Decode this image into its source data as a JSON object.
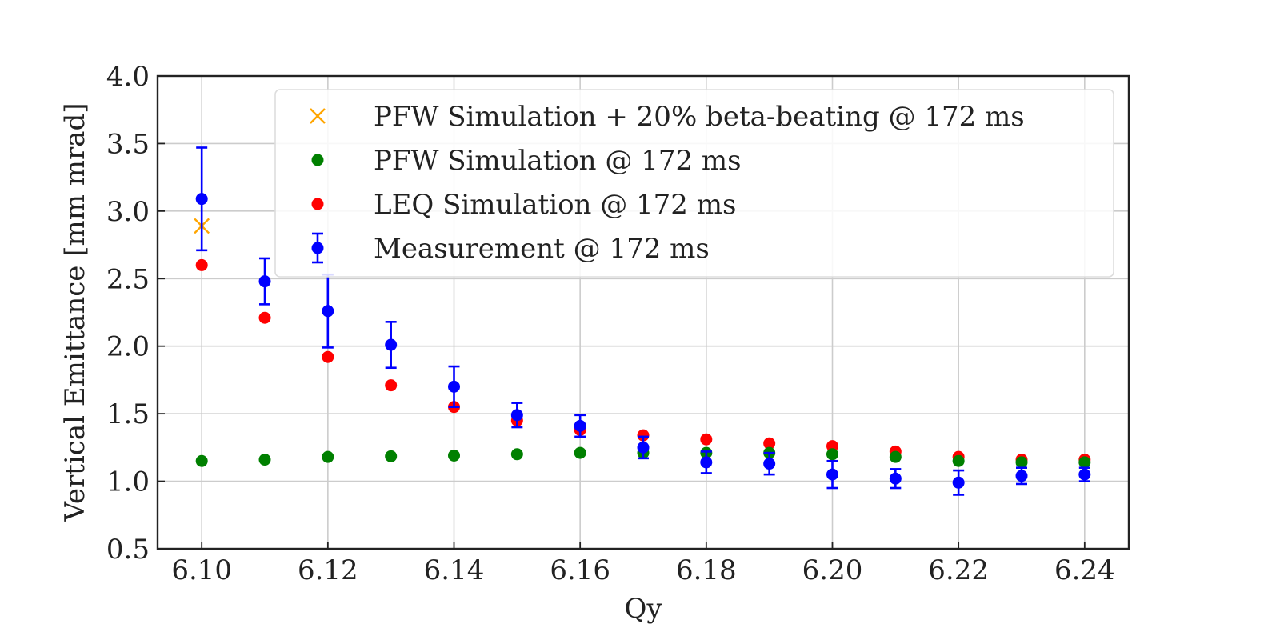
{
  "chart_data": {
    "type": "scatter",
    "title": "",
    "xlabel": "Qy",
    "ylabel": "Vertical Emittance [mm mrad]",
    "xlim": [
      6.093,
      6.247
    ],
    "ylim": [
      0.5,
      4.0
    ],
    "xticks": [
      6.1,
      6.12,
      6.14,
      6.16,
      6.18,
      6.2,
      6.22,
      6.24
    ],
    "xtick_labels": [
      "6.10",
      "6.12",
      "6.14",
      "6.16",
      "6.18",
      "6.20",
      "6.22",
      "6.24"
    ],
    "yticks": [
      0.5,
      1.0,
      1.5,
      2.0,
      2.5,
      3.0,
      3.5,
      4.0
    ],
    "ytick_labels": [
      "0.5",
      "1.0",
      "1.5",
      "2.0",
      "2.5",
      "3.0",
      "3.5",
      "4.0"
    ],
    "grid": true,
    "legend_position": "top-right",
    "series": [
      {
        "name": "PFW Simulation + 20% beta-beating @ 172 ms",
        "marker": "x",
        "color": "#ffa500",
        "x": [
          6.1
        ],
        "y": [
          2.89
        ]
      },
      {
        "name": "PFW Simulation @ 172 ms",
        "marker": "circle",
        "color": "#008000",
        "x": [
          6.1,
          6.11,
          6.12,
          6.13,
          6.14,
          6.15,
          6.16,
          6.17,
          6.18,
          6.19,
          6.2,
          6.21,
          6.22,
          6.23,
          6.24
        ],
        "y": [
          1.15,
          1.16,
          1.18,
          1.185,
          1.19,
          1.2,
          1.21,
          1.21,
          1.21,
          1.21,
          1.2,
          1.18,
          1.15,
          1.14,
          1.14
        ]
      },
      {
        "name": "LEQ Simulation @ 172 ms",
        "marker": "circle",
        "color": "#ff0000",
        "x": [
          6.1,
          6.11,
          6.12,
          6.13,
          6.14,
          6.15,
          6.16,
          6.17,
          6.18,
          6.19,
          6.2,
          6.21,
          6.22,
          6.23,
          6.24
        ],
        "y": [
          2.6,
          2.21,
          1.92,
          1.71,
          1.55,
          1.45,
          1.38,
          1.34,
          1.31,
          1.28,
          1.26,
          1.22,
          1.18,
          1.16,
          1.16
        ]
      },
      {
        "name": "Measurement @ 172 ms",
        "marker": "circle-errorbar",
        "color": "#0000ff",
        "x": [
          6.1,
          6.11,
          6.12,
          6.13,
          6.14,
          6.15,
          6.16,
          6.17,
          6.18,
          6.19,
          6.2,
          6.21,
          6.22,
          6.23,
          6.24
        ],
        "y": [
          3.09,
          2.48,
          2.26,
          2.01,
          1.7,
          1.49,
          1.41,
          1.25,
          1.14,
          1.13,
          1.05,
          1.02,
          0.99,
          1.04,
          1.05
        ],
        "yerr": [
          0.38,
          0.17,
          0.27,
          0.17,
          0.15,
          0.09,
          0.08,
          0.08,
          0.08,
          0.08,
          0.1,
          0.07,
          0.09,
          0.06,
          0.05
        ]
      }
    ]
  }
}
